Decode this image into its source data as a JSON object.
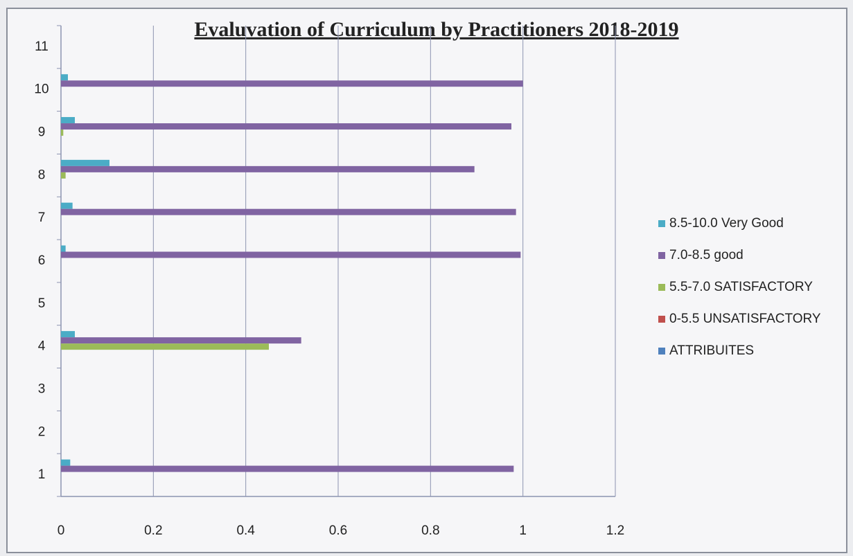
{
  "chart_data": {
    "type": "bar",
    "orientation": "horizontal",
    "title": "Evaluvation of Curriculum by Practitioners 2018-2019",
    "categories": [
      "1",
      "2",
      "3",
      "4",
      "5",
      "6",
      "7",
      "8",
      "9",
      "10",
      "11"
    ],
    "series": [
      {
        "name": "8.5-10.0 Very Good",
        "color": "#4bacc6",
        "values": [
          0.02,
          null,
          null,
          0.03,
          null,
          0.01,
          0.025,
          0.105,
          0.03,
          0.015,
          null
        ]
      },
      {
        "name": "7.0-8.5 good",
        "color": "#8064a2",
        "values": [
          0.98,
          null,
          null,
          0.52,
          null,
          0.995,
          0.985,
          0.895,
          0.975,
          1.0,
          null
        ]
      },
      {
        "name": "5.5-7.0 SATISFACTORY",
        "color": "#9bbb59",
        "values": [
          0,
          null,
          null,
          0.45,
          null,
          0,
          0,
          0.01,
          0.005,
          0,
          null
        ]
      },
      {
        "name": "0-5.5 UNSATISFACTORY",
        "color": "#c0504d",
        "values": [
          0,
          null,
          null,
          0,
          null,
          0,
          0,
          0,
          0,
          0,
          null
        ]
      },
      {
        "name": "ATTRIBUITES",
        "color": "#4f81bd",
        "values": [
          0,
          null,
          null,
          0,
          null,
          0,
          0,
          0,
          0,
          0,
          null
        ]
      }
    ],
    "xlim": [
      0,
      1.2
    ],
    "xticks": [
      0,
      0.2,
      0.4,
      0.6,
      0.8,
      1,
      1.2
    ],
    "grid": true,
    "legend": "right"
  }
}
